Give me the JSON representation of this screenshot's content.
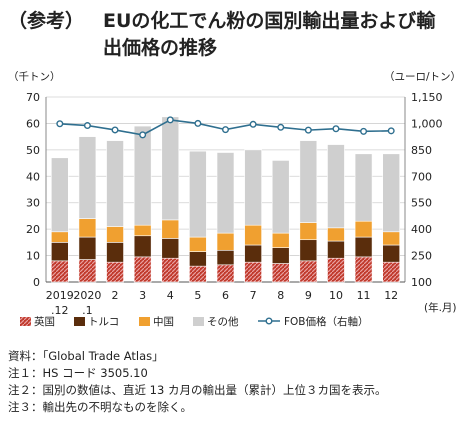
{
  "title": {
    "prefix": "（参考）",
    "line1": "EUの化工でん粉の国別輸出量および輸",
    "line2": "出価格の推移"
  },
  "chart_data": {
    "type": "bar",
    "stacked": true,
    "left_axis_unit": "（千トン）",
    "right_axis_unit": "（ユーロ/トン）",
    "x_unit": "(年.月)",
    "categories": [
      "2019\n.12",
      "2020\n.1",
      "2",
      "3",
      "4",
      "5",
      "6",
      "7",
      "8",
      "9",
      "10",
      "11",
      "12"
    ],
    "ylim": [
      0,
      70
    ],
    "yticks": [
      "0",
      "10",
      "20",
      "30",
      "40",
      "50",
      "60",
      "70"
    ],
    "y2lim": [
      100,
      1150
    ],
    "y2ticks": [
      "100",
      "250",
      "400",
      "550",
      "700",
      "850",
      "1,000",
      "1,150"
    ],
    "grid": true,
    "legend_position": "bottom",
    "series": [
      {
        "name": "英国",
        "kind": "bar",
        "color": "#c0392b",
        "pattern": "hatched",
        "values": [
          8,
          8.5,
          7.5,
          9.5,
          9,
          6,
          6.5,
          7.5,
          7,
          8,
          9,
          9.5,
          7.5
        ]
      },
      {
        "name": "トルコ",
        "kind": "bar",
        "color": "#5a2d0c",
        "values": [
          7,
          8.5,
          7.5,
          8,
          7.5,
          5.5,
          5.5,
          6.5,
          6,
          8,
          6.5,
          7.5,
          6.5
        ]
      },
      {
        "name": "中国",
        "kind": "bar",
        "color": "#f0a030",
        "values": [
          4,
          7,
          6,
          4,
          7,
          5.5,
          6.5,
          7.5,
          5.5,
          6.5,
          5,
          6,
          5
        ]
      },
      {
        "name": "その他",
        "kind": "bar",
        "color": "#cfcfcf",
        "values": [
          28,
          31,
          32.5,
          37.5,
          39,
          32.5,
          30.5,
          28.5,
          27.5,
          31,
          31.5,
          25.5,
          29.5
        ]
      },
      {
        "name": "FOB価格（右軸）",
        "kind": "line",
        "axis": "right",
        "color": "#2f6f8f",
        "values": [
          998,
          988,
          963,
          935,
          1020,
          1000,
          965,
          995,
          978,
          962,
          970,
          955,
          958
        ]
      }
    ]
  },
  "notes": [
    "資料：「Global Trade Atlas」",
    "注１：HS コード 3505.10",
    "注２：国別の数値は、直近 13 カ月の輸出量（累計）上位３カ国を表示。",
    "注３：輸出先の不明なものを除く。"
  ]
}
